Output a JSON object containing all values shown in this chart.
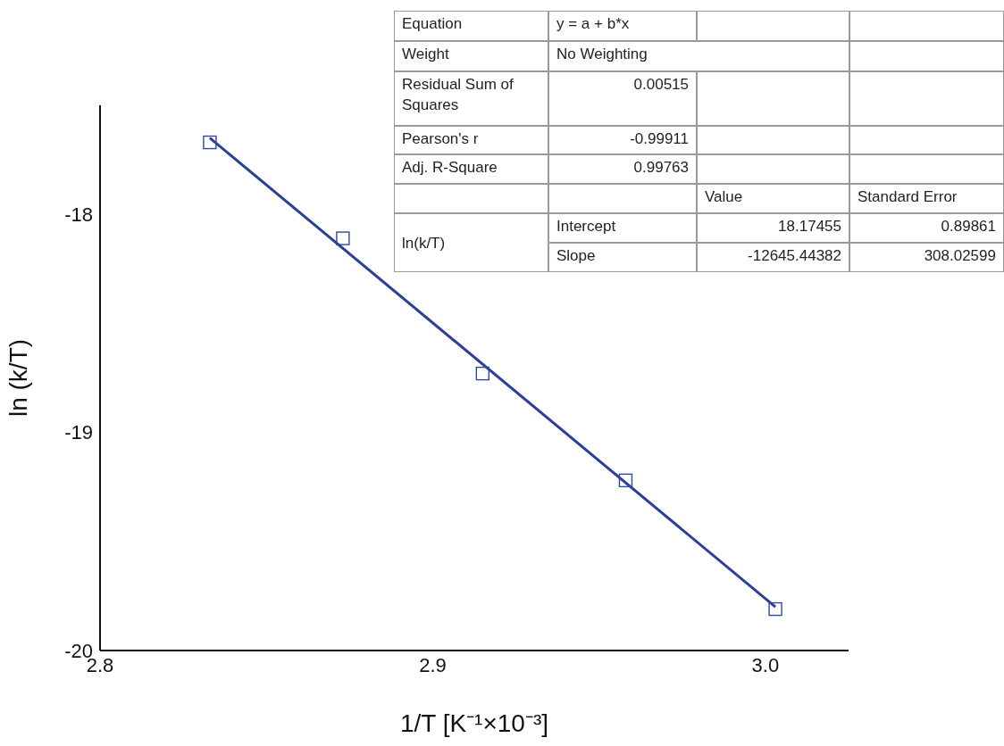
{
  "chart_data": {
    "type": "scatter",
    "xlabel": "1/T [K⁻¹×10⁻³]",
    "ylabel": "ln (k/T)",
    "xlim": [
      2.8,
      3.025
    ],
    "ylim": [
      -20,
      -17.5
    ],
    "xticks": [
      2.8,
      2.9,
      {
        "value": 3.0,
        "label": "3.0"
      }
    ],
    "yticks": [
      -20,
      -19,
      -18
    ],
    "series": [
      {
        "color": "#2e4a9a",
        "marker": "square",
        "x": [
          2.833,
          2.873,
          2.915,
          2.958,
          3.003
        ],
        "values": [
          -17.67,
          -18.11,
          -18.73,
          -19.22,
          -19.81
        ]
      },
      {
        "type": "line",
        "color": "#2b3f95",
        "marker": "none",
        "line_style": "solid",
        "x": [
          2.833,
          3.003
        ],
        "values": [
          -17.65,
          -19.8
        ]
      }
    ],
    "annotations": [
      "Equation",
      "y = a + b*x",
      "Weight",
      "No Weighting",
      "Residual Sum of Squares",
      "0.00515",
      "Pearson's r",
      "-0.99911",
      "Adj. R-Square",
      "0.99763",
      "Value",
      "Standard Error",
      "ln(k/T)",
      "Intercept",
      "18.17455",
      "0.89861",
      "Slope",
      "-12645.44382",
      "308.02599"
    ]
  }
}
